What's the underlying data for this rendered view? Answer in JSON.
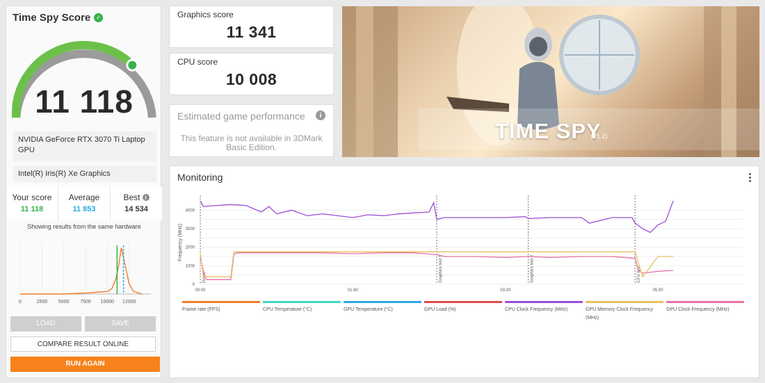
{
  "score_panel": {
    "title": "Time Spy Score",
    "score": "11 118",
    "gpu1": "NVIDIA GeForce RTX 3070 Ti Laptop GPU",
    "gpu2": "Intel(R) Iris(R) Xe Graphics",
    "stats": [
      {
        "label": "Your score",
        "value": "11 118",
        "color": "#35b34a"
      },
      {
        "label": "Average",
        "value": "11 853",
        "color": "#2aa9e0"
      },
      {
        "label": "Best",
        "value": "14 534",
        "color": "#333333"
      }
    ],
    "histogram_caption": "Showing results from the same hardware",
    "load_label": "LOAD",
    "save_label": "SAVE",
    "compare_label": "COMPARE RESULT ONLINE",
    "run_again_label": "RUN AGAIN"
  },
  "graphics": {
    "label": "Graphics score",
    "value": "11 341"
  },
  "cpu": {
    "label": "CPU score",
    "value": "10 008"
  },
  "estimated": {
    "label": "Estimated game performance",
    "text": "This feature is not available in 3DMark Basic Edition."
  },
  "banner": {
    "title": "TIME SPY",
    "version": "(V1.2)"
  },
  "monitoring": {
    "title": "Monitoring",
    "legend": [
      {
        "label": "Frame rate (FPS)",
        "color": "#ef7d2a"
      },
      {
        "label": "CPU Temperature (°C)",
        "color": "#3fd9c3"
      },
      {
        "label": "GPU Temperature (°C)",
        "color": "#2aa9e0"
      },
      {
        "label": "GPU Load (%)",
        "color": "#e04a4a"
      },
      {
        "label": "CPU Clock Frequency (MHz)",
        "color": "#9b4fd6"
      },
      {
        "label": "GPU Memory Clock Frequency (MHz)",
        "color": "#e8c060"
      },
      {
        "label": "GPU Clock Frequency (MHz)",
        "color": "#e970a8"
      }
    ]
  },
  "chart_data": [
    {
      "type": "line",
      "name": "histogram",
      "x": [
        0,
        2500,
        5000,
        7500,
        10000,
        10500,
        11000,
        11300,
        11600,
        12000,
        12500,
        13000,
        14000
      ],
      "values": [
        0,
        0,
        0,
        0.02,
        0.05,
        0.1,
        0.3,
        0.55,
        0.9,
        0.6,
        0.2,
        0.05,
        0
      ],
      "tick_labels": [
        "0",
        "2500",
        "5000",
        "7500",
        "10000",
        "12500"
      ],
      "markers": [
        {
          "name": "your score",
          "x": 11118,
          "color": "#35b34a"
        },
        {
          "name": "average",
          "x": 11853,
          "color": "#2aa9e0"
        }
      ]
    },
    {
      "type": "line",
      "name": "monitoring",
      "ylabel": "Frequency (MHz)",
      "ylim": [
        0,
        4500
      ],
      "y_ticks": [
        "0",
        "1000",
        "2000",
        "3000",
        "4000"
      ],
      "x_ticks": [
        "00:00",
        "01:40",
        "03:20",
        "05:00"
      ],
      "x_range_s": [
        0,
        310
      ],
      "markers": [
        {
          "label": "Demo",
          "t": 0
        },
        {
          "label": "Graphics test 1",
          "t": 155
        },
        {
          "label": "Graphics test 2",
          "t": 215
        },
        {
          "label": "CPU test",
          "t": 285
        }
      ],
      "series": [
        {
          "name": "CPU Clock Frequency (MHz)",
          "color": "#9b4fd6",
          "t": [
            0,
            2,
            20,
            30,
            40,
            45,
            50,
            60,
            70,
            80,
            100,
            110,
            120,
            130,
            140,
            150,
            153,
            155,
            160,
            180,
            200,
            213,
            215,
            230,
            250,
            255,
            270,
            283,
            285,
            290,
            295,
            300,
            305,
            310
          ],
          "y": [
            4500,
            4200,
            4300,
            4250,
            3900,
            4200,
            3800,
            4000,
            3700,
            3800,
            3600,
            3750,
            3700,
            3800,
            3850,
            3900,
            4400,
            3500,
            3600,
            3600,
            3600,
            3650,
            3550,
            3600,
            3600,
            3300,
            3600,
            3600,
            3300,
            3000,
            2800,
            3200,
            3400,
            4500
          ]
        },
        {
          "name": "GPU Clock Frequency (MHz)",
          "color": "#e970a8",
          "t": [
            0,
            2,
            4,
            20,
            22,
            24,
            40,
            60,
            80,
            100,
            120,
            140,
            155,
            160,
            180,
            200,
            215,
            230,
            250,
            270,
            285,
            287,
            290,
            300,
            310
          ],
          "y": [
            1500,
            700,
            250,
            250,
            1600,
            1700,
            1700,
            1700,
            1700,
            1650,
            1700,
            1700,
            1600,
            1500,
            1500,
            1450,
            1500,
            1450,
            1500,
            1500,
            1400,
            800,
            600,
            700,
            750
          ]
        },
        {
          "name": "GPU Memory Clock Frequency (MHz)",
          "color": "#e8c060",
          "t": [
            0,
            2,
            4,
            20,
            22,
            24,
            60,
            100,
            150,
            155,
            200,
            250,
            285,
            290,
            300,
            310
          ],
          "y": [
            1700,
            405,
            405,
            405,
            1750,
            1750,
            1750,
            1750,
            1750,
            1750,
            1750,
            1750,
            1750,
            405,
            1500,
            1500
          ]
        }
      ]
    }
  ]
}
